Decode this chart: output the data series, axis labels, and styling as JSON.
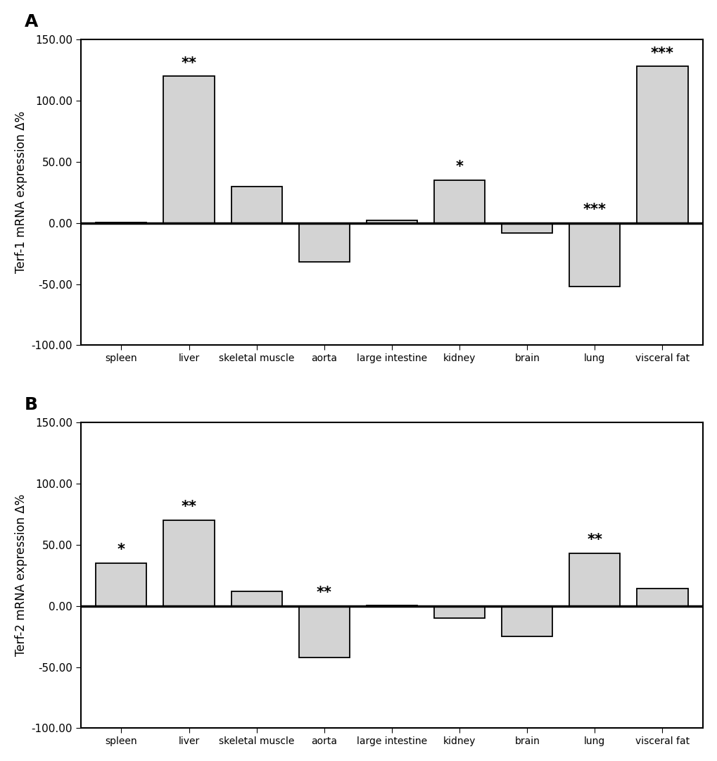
{
  "categories": [
    "spleen",
    "liver",
    "skeletal muscle",
    "aorta",
    "large intestine",
    "kidney",
    "brain",
    "lung",
    "visceral fat"
  ],
  "terf1_values": [
    0.5,
    120,
    30,
    -32,
    2,
    35,
    -8,
    -52,
    128
  ],
  "terf2_values": [
    35,
    70,
    12,
    -42,
    0.5,
    -10,
    -25,
    43,
    14
  ],
  "terf1_stars": [
    "",
    "**",
    "",
    "",
    "",
    "*",
    "",
    "***",
    "***"
  ],
  "terf2_stars": [
    "*",
    "**",
    "",
    "**",
    "",
    "",
    "",
    "**",
    ""
  ],
  "terf1_stars_above_zero": [
    false,
    true,
    false,
    false,
    false,
    true,
    false,
    true,
    true
  ],
  "terf2_stars_above_zero": [
    true,
    true,
    false,
    true,
    false,
    false,
    false,
    true,
    false
  ],
  "bar_color": "#d3d3d3",
  "bar_edgecolor": "#000000",
  "ylim": [
    -100,
    150
  ],
  "yticks": [
    -100,
    -50,
    0,
    50,
    100,
    150
  ],
  "ylabel_A": "Terf-1 mRNA expression Δ%",
  "ylabel_B": "Terf-2 mRNA expression Δ%",
  "label_A": "A",
  "label_B": "B",
  "bar_width": 0.75,
  "zero_line_lw": 2.5
}
